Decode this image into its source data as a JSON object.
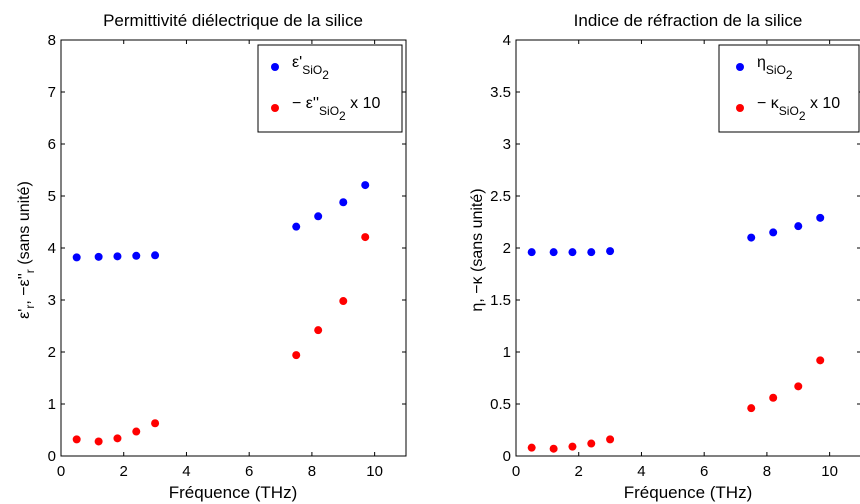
{
  "chart_data": [
    {
      "type": "scatter",
      "title": "Permittivité diélectrique de la silice",
      "xlabel": "Fréquence (THz)",
      "ylabel": "ε'r, −ε''r  (sans unité)",
      "xlim": [
        0,
        11
      ],
      "ylim": [
        0,
        8
      ],
      "xticks": [
        "0",
        "2",
        "4",
        "6",
        "8",
        "10"
      ],
      "xtick_values": [
        0,
        2,
        4,
        6,
        8,
        10
      ],
      "yticks": [
        "0",
        "1",
        "2",
        "3",
        "4",
        "5",
        "6",
        "7",
        "8"
      ],
      "ytick_values": [
        0,
        1,
        2,
        3,
        4,
        5,
        6,
        7,
        8
      ],
      "legend_position": "top-right",
      "series": [
        {
          "name": "ε'SiO2",
          "color": "#0000ff",
          "x": [
            0.5,
            1.2,
            1.8,
            2.4,
            3.0,
            7.5,
            8.2,
            9.0,
            9.7
          ],
          "y": [
            3.82,
            3.83,
            3.84,
            3.85,
            3.86,
            4.41,
            4.61,
            4.88,
            5.21
          ]
        },
        {
          "name": "− ε''SiO2 x 10",
          "color": "#ff0000",
          "x": [
            0.5,
            1.2,
            1.8,
            2.4,
            3.0,
            7.5,
            8.2,
            9.0,
            9.7
          ],
          "y": [
            0.32,
            0.28,
            0.34,
            0.47,
            0.63,
            1.94,
            2.42,
            2.98,
            4.21
          ]
        }
      ]
    },
    {
      "type": "scatter",
      "title": "Indice de réfraction de la silice",
      "xlabel": "Fréquence (THz)",
      "ylabel": "η, −κ  (sans unité)",
      "xlim": [
        0,
        11
      ],
      "ylim": [
        0,
        4
      ],
      "xticks": [
        "0",
        "2",
        "4",
        "6",
        "8",
        "10"
      ],
      "xtick_values": [
        0,
        2,
        4,
        6,
        8,
        10
      ],
      "yticks": [
        "0",
        "0.5",
        "1",
        "1.5",
        "2",
        "2.5",
        "3",
        "3.5",
        "4"
      ],
      "ytick_values": [
        0,
        0.5,
        1,
        1.5,
        2,
        2.5,
        3,
        3.5,
        4
      ],
      "legend_position": "top-right",
      "series": [
        {
          "name": "ηSiO2",
          "color": "#0000ff",
          "x": [
            0.5,
            1.2,
            1.8,
            2.4,
            3.0,
            7.5,
            8.2,
            9.0,
            9.7
          ],
          "y": [
            1.96,
            1.96,
            1.96,
            1.96,
            1.97,
            2.1,
            2.15,
            2.21,
            2.29
          ]
        },
        {
          "name": "− κSiO2 x 10",
          "color": "#ff0000",
          "x": [
            0.5,
            1.2,
            1.8,
            2.4,
            3.0,
            7.5,
            8.2,
            9.0,
            9.7
          ],
          "y": [
            0.08,
            0.07,
            0.09,
            0.12,
            0.16,
            0.46,
            0.56,
            0.67,
            0.92
          ]
        }
      ]
    }
  ]
}
